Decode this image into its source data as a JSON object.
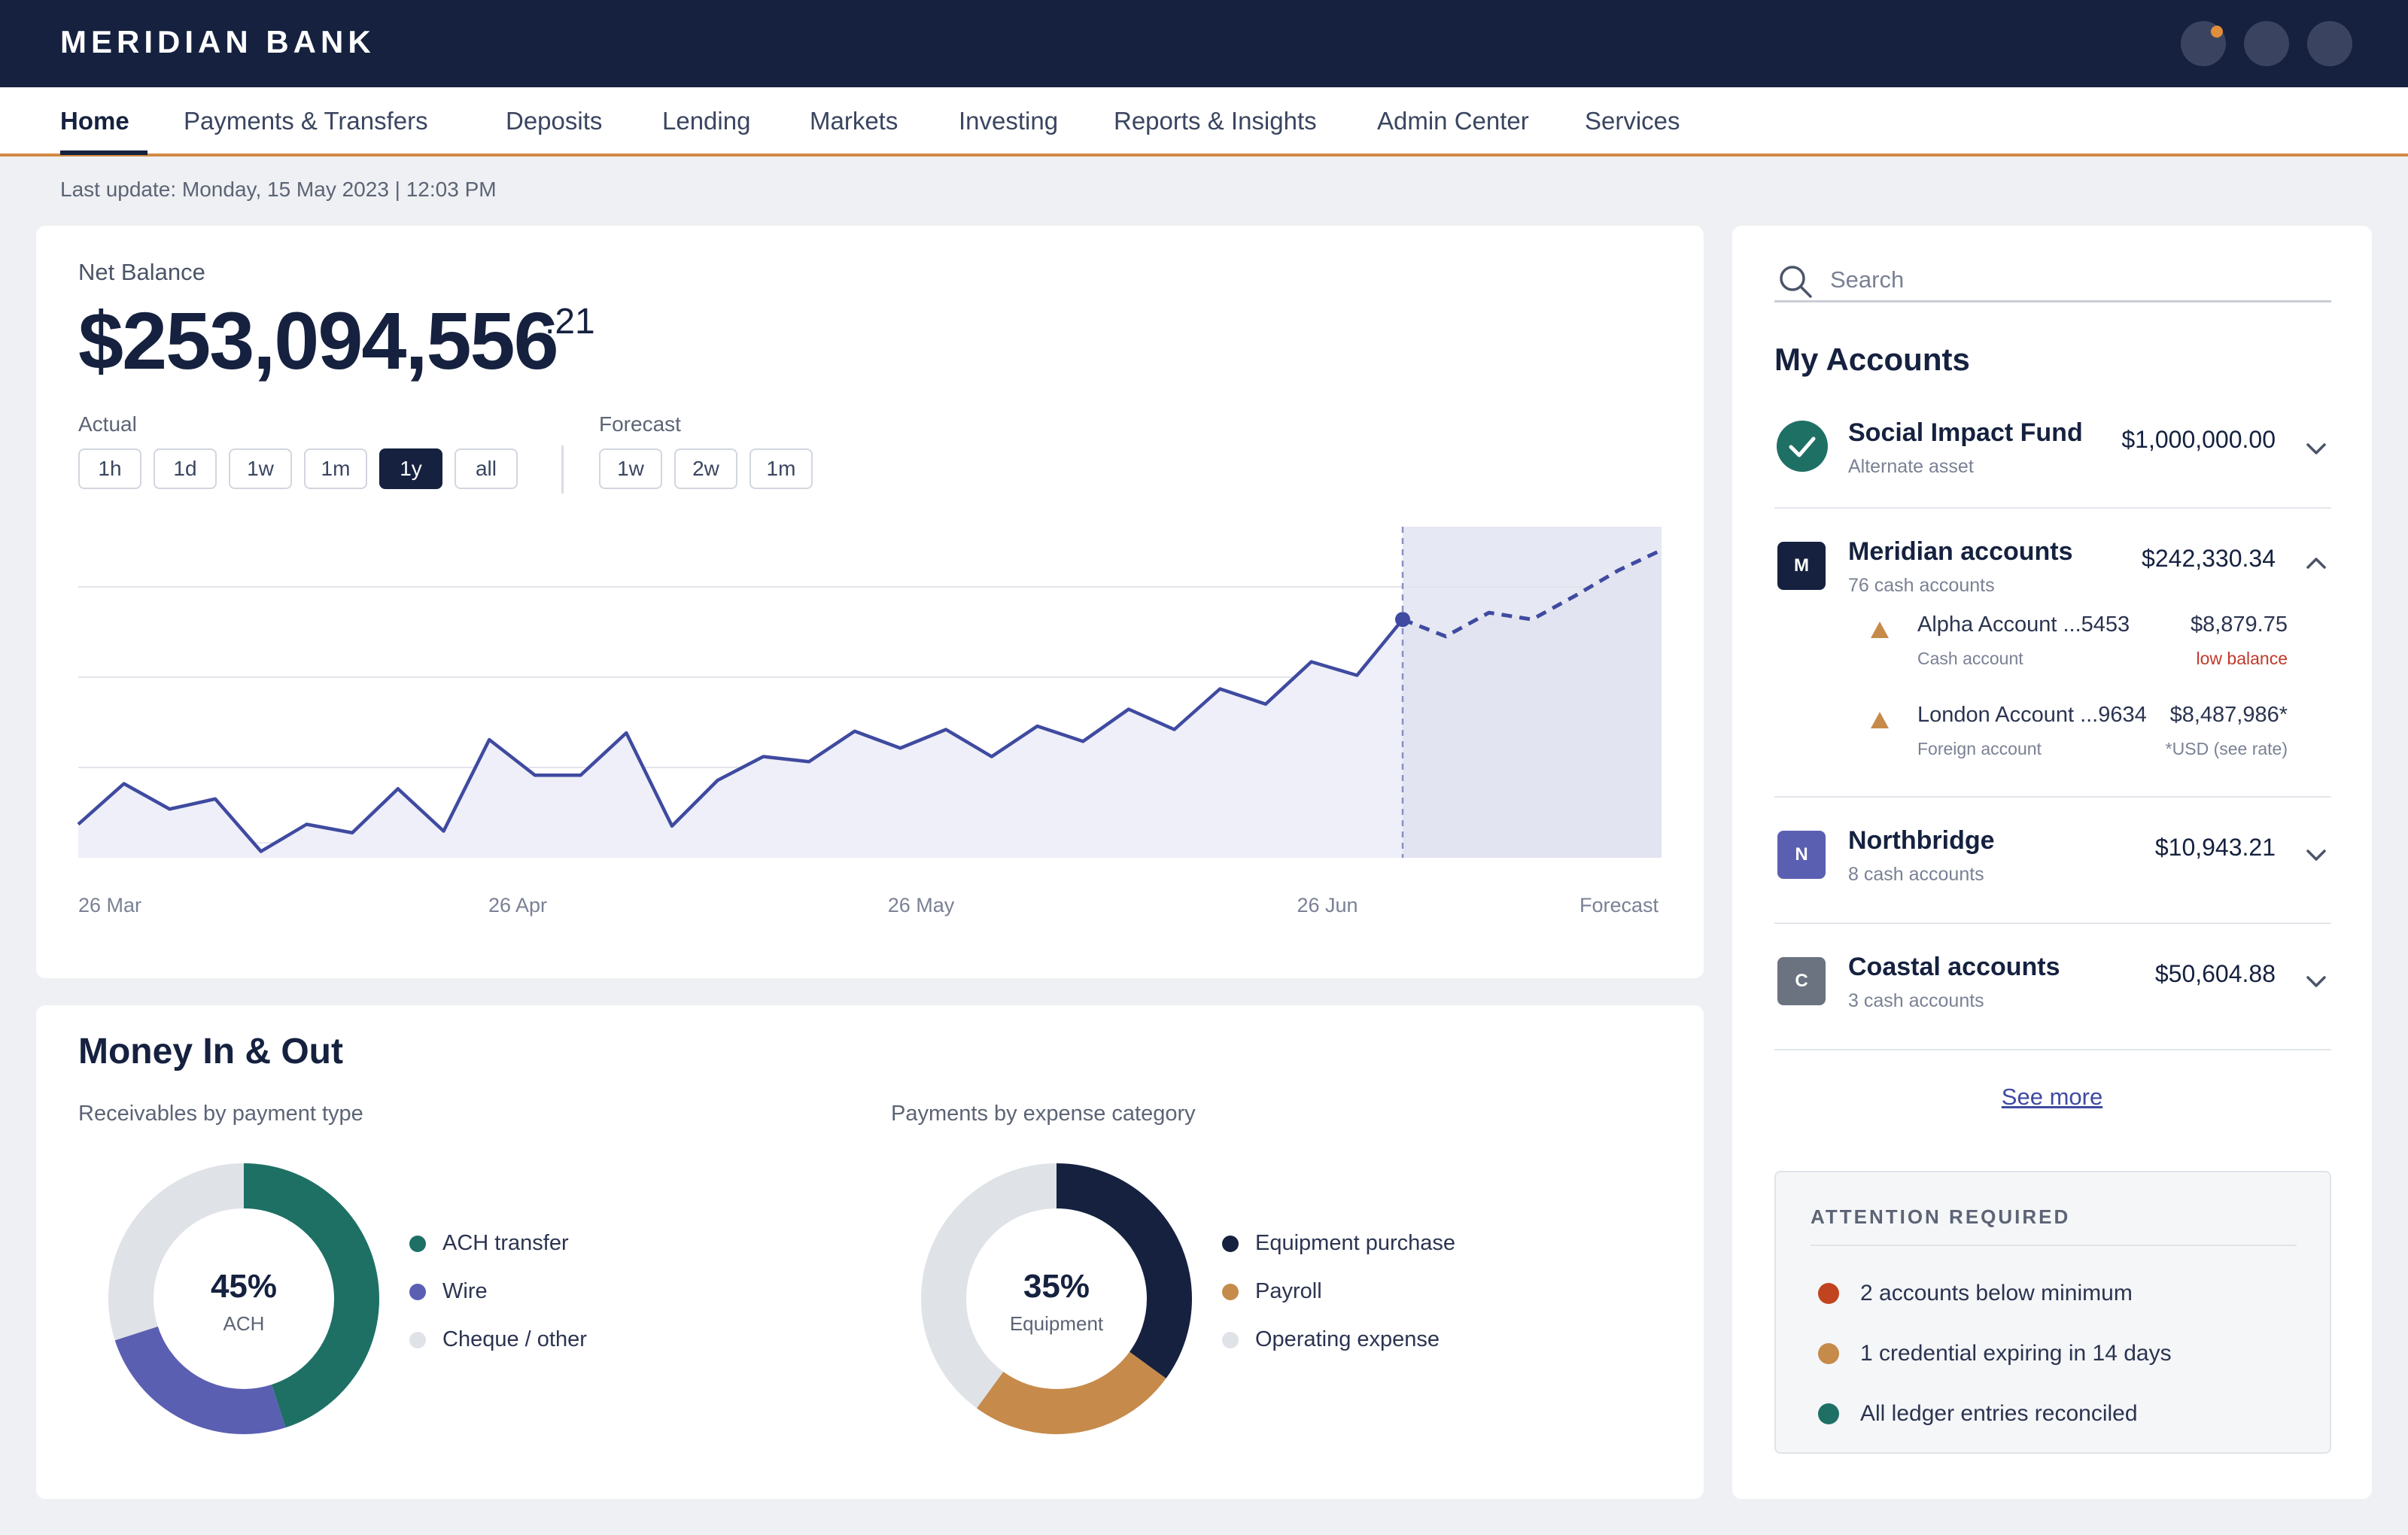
{
  "header": {
    "brand": "MERIDIAN BANK"
  },
  "nav": {
    "items": [
      {
        "label": "Home",
        "active": true
      },
      {
        "label": "Payments & Transfers",
        "active": false
      },
      {
        "label": "Deposits",
        "active": false
      },
      {
        "label": "Lending",
        "active": false
      },
      {
        "label": "Markets",
        "active": false
      },
      {
        "label": "Investing",
        "active": false
      },
      {
        "label": "Reports & Insights",
        "active": false
      },
      {
        "label": "Admin Center",
        "active": false
      },
      {
        "label": "Services",
        "active": false
      }
    ]
  },
  "status": {
    "last_update": "Last update: Monday, 15 May 2023 | 12:03 PM"
  },
  "net_balance": {
    "label": "Net Balance",
    "amount": "$253,094,556",
    "cents": ".21",
    "actual_label": "Actual",
    "forecast_label": "Forecast",
    "actual_ranges": [
      "1h",
      "1d",
      "1w",
      "1m",
      "1y",
      "all"
    ],
    "forecast_ranges": [
      "1w",
      "2w",
      "1m"
    ],
    "selected_range": "1y"
  },
  "chart_data": {
    "type": "line",
    "title": "",
    "xlabel": "",
    "ylabel": "",
    "x_tick_labels": [
      "26 Mar",
      "26 Apr",
      "26 May",
      "26 Jun",
      "Forecast"
    ],
    "y_axis_labels_shown": false,
    "grid": "horizontal",
    "actual_series": [
      18,
      42,
      27,
      33,
      2,
      18,
      13,
      39,
      14,
      68,
      47,
      47,
      72,
      17,
      44,
      58,
      55,
      73,
      63,
      74,
      58,
      76,
      67,
      86,
      74,
      98,
      89,
      114,
      106,
      139
    ],
    "forecast_series": [
      139,
      129,
      143,
      139,
      153,
      168,
      180
    ],
    "color": "#3f4aa0",
    "forecast_shaded": true
  },
  "money": {
    "title": "Money In & Out",
    "receivables": {
      "subtitle": "Receivables by payment type",
      "center_pct": "45%",
      "center_caption": "ACH",
      "segments": [
        {
          "label": "ACH transfer",
          "value": 45,
          "color": "#1e7065"
        },
        {
          "label": "Wire",
          "value": 25,
          "color": "#5b5fb2"
        },
        {
          "label": "Cheque / other",
          "value": 30,
          "color": "#dfe2e7"
        }
      ]
    },
    "payments": {
      "subtitle": "Payments by expense category",
      "center_pct": "35%",
      "center_caption": "Equipment",
      "segments": [
        {
          "label": "Equipment purchase",
          "value": 35,
          "color": "#15213f"
        },
        {
          "label": "Payroll",
          "value": 25,
          "color": "#c68a4b"
        },
        {
          "label": "Operating expense",
          "value": 40,
          "color": "#dfe2e7"
        }
      ]
    }
  },
  "search": {
    "placeholder": "Search"
  },
  "accounts": {
    "title": "My Accounts",
    "groups": [
      {
        "name": "Social Impact Fund",
        "subtitle": "Alternate asset",
        "amount": "$1,000,000.00",
        "icon": "check-circle-icon",
        "expanded": false
      },
      {
        "name": "Meridian accounts",
        "subtitle": "76 cash accounts",
        "amount": "$242,330.34",
        "badge": "M",
        "badge_color": "#15213f",
        "expanded": true,
        "children": [
          {
            "name": "Alpha Account ...5453",
            "type": "Cash account",
            "amount": "$8,879.75",
            "note": "low balance",
            "note_color": "#c0392b",
            "icon": "warning-triangle-icon"
          },
          {
            "name": "London Account ...9634",
            "type": "Foreign account",
            "amount": "$8,487,986*",
            "note": "*USD (see rate)",
            "note_color": "#7a8194",
            "icon": "warning-triangle-icon"
          }
        ]
      },
      {
        "name": "Northbridge",
        "subtitle": "8 cash accounts",
        "amount": "$10,943.21",
        "badge": "N",
        "badge_color": "#5b5fb2",
        "expanded": false
      },
      {
        "name": "Coastal accounts",
        "subtitle": "3 cash accounts",
        "amount": "$50,604.88",
        "badge": "C",
        "badge_color": "#6b7280",
        "expanded": false
      }
    ],
    "see_more": "See more"
  },
  "attention": {
    "title": "ATTENTION REQUIRED",
    "items": [
      {
        "text": "2 accounts below minimum",
        "color": "#c0441f"
      },
      {
        "text": "1 credential expiring in 14 days",
        "color": "#c68a4b"
      },
      {
        "text": "All ledger entries reconciled",
        "color": "#1e7065"
      }
    ]
  }
}
